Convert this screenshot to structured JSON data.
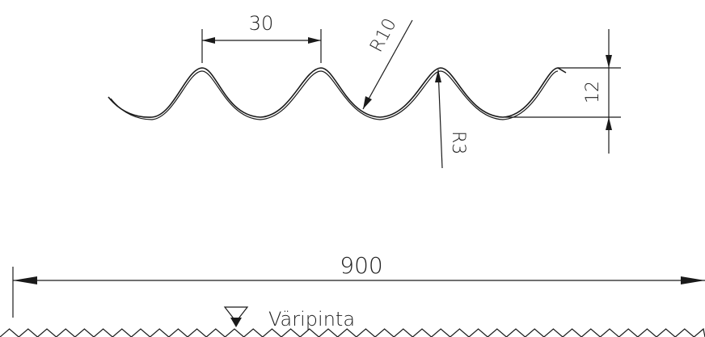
{
  "drawing": {
    "pitch_label": "30",
    "outer_radius_label": "R10",
    "inner_radius_label": "R3",
    "height_label": "12",
    "width_label": "900",
    "surface_note": "Väripinta"
  },
  "symbols": {
    "surface_marker": "triangle-down-icon"
  }
}
